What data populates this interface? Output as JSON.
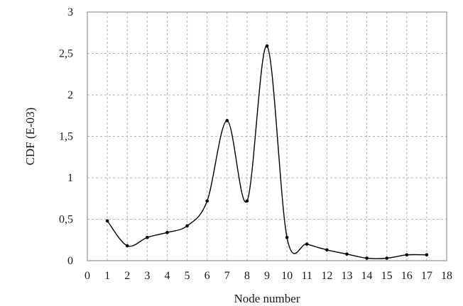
{
  "chart_data": {
    "type": "line",
    "title": "",
    "xlabel": "Node number",
    "ylabel": "CDF (E-03)",
    "xlim": [
      0,
      18
    ],
    "ylim": [
      0,
      3
    ],
    "x_ticks": [
      0,
      1,
      2,
      3,
      4,
      5,
      6,
      7,
      8,
      9,
      10,
      11,
      12,
      13,
      14,
      15,
      16,
      17,
      18
    ],
    "y_ticks": [
      0,
      0.5,
      1,
      1.5,
      2,
      2.5,
      3
    ],
    "y_tick_labels": [
      "0",
      "0,5",
      "1",
      "1,5",
      "2",
      "2,5",
      "3"
    ],
    "grid": true,
    "smooth": true,
    "series": [
      {
        "x": [
          1,
          2,
          3,
          4,
          5,
          6,
          7,
          8,
          9,
          10,
          11,
          12,
          13,
          14,
          15,
          16,
          17
        ],
        "values": [
          0.48,
          0.18,
          0.28,
          0.34,
          0.42,
          0.72,
          1.69,
          0.72,
          2.59,
          0.28,
          0.2,
          0.13,
          0.08,
          0.03,
          0.03,
          0.07,
          0.07
        ],
        "color": "#000000"
      }
    ]
  }
}
